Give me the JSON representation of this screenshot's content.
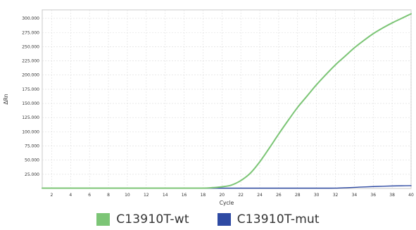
{
  "chart_data": {
    "type": "line",
    "xlabel": "Cycle",
    "ylabel": "ΔRn",
    "xlim": [
      1,
      40
    ],
    "ylim": [
      0,
      315000
    ],
    "x_ticks": [
      2,
      4,
      6,
      8,
      10,
      12,
      14,
      16,
      18,
      20,
      22,
      24,
      26,
      28,
      30,
      32,
      34,
      36,
      38,
      40
    ],
    "y_ticks": [
      25000,
      50000,
      75000,
      100000,
      125000,
      150000,
      175000,
      200000,
      225000,
      250000,
      275000,
      300000
    ],
    "y_tick_labels": [
      "25.000",
      "50.000",
      "75.000",
      "100.000",
      "125.000",
      "150.000",
      "175.000",
      "200.000",
      "225.000",
      "250.000",
      "275.000",
      "300.000"
    ],
    "grid": true,
    "legend_position": "bottom",
    "series": [
      {
        "name": "C13910T-wt",
        "color": "#7cc576",
        "x": [
          1,
          2,
          4,
          6,
          8,
          10,
          12,
          14,
          16,
          18,
          19,
          20,
          21,
          22,
          23,
          24,
          25,
          26,
          27,
          28,
          29,
          30,
          31,
          32,
          33,
          34,
          35,
          36,
          37,
          38,
          39,
          40
        ],
        "y": [
          0,
          0,
          0,
          0,
          0,
          0,
          0,
          0,
          0,
          500,
          1500,
          3000,
          6000,
          14000,
          27000,
          47000,
          71000,
          96000,
          120000,
          143000,
          163000,
          183000,
          201000,
          218000,
          233000,
          248000,
          261000,
          273000,
          283000,
          292000,
          300000,
          308000
        ]
      },
      {
        "name": "C13910T-mut",
        "color": "#2e4aa3",
        "x": [
          1,
          2,
          4,
          6,
          8,
          10,
          12,
          14,
          16,
          18,
          20,
          22,
          24,
          26,
          28,
          30,
          31,
          32,
          33,
          34,
          35,
          36,
          37,
          38,
          39,
          40
        ],
        "y": [
          0,
          0,
          0,
          0,
          0,
          0,
          0,
          0,
          0,
          0,
          0,
          0,
          0,
          0,
          0,
          0,
          300,
          700,
          1300,
          2000,
          2700,
          3400,
          4000,
          4500,
          4800,
          5000
        ]
      }
    ]
  }
}
